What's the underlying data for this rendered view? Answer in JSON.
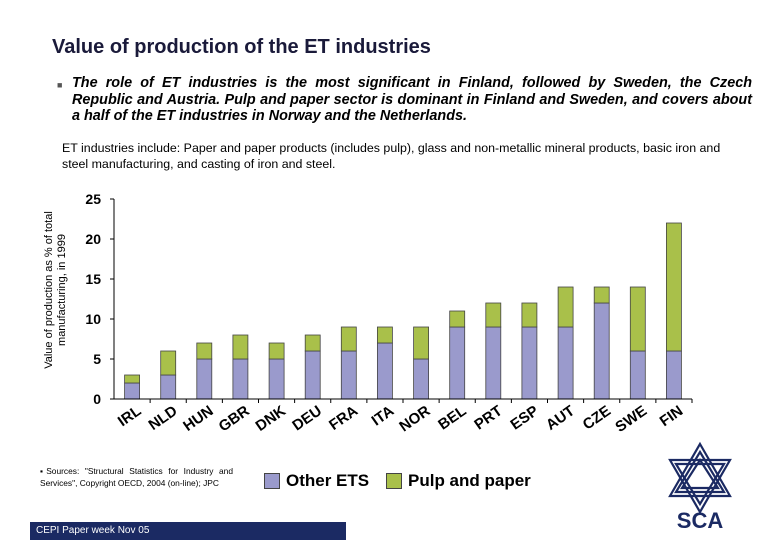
{
  "title": "Value of production of the ET industries",
  "bullet": {
    "icon": "square-bullet-icon",
    "text": "The role of ET industries is the most significant in Finland, followed by Sweden, the Czech Republic and Austria. Pulp and paper sector is dominant in Finland and Sweden, and covers about a half of the ET industries in Norway and the Netherlands."
  },
  "note": "ET industries include: Paper and paper products (includes pulp),  glass and non-metallic mineral products, basic iron and steel manufacturing, and casting of iron and steel.",
  "source_text": "▪Sources: \"Structural Statistics for Industry and Services\", Copyright OECD, 2004 (on-line); JPC",
  "footer_text": "CEPI Paper week Nov 05",
  "logo_text": "SCA",
  "colors": {
    "other_ets": "#9a9acc",
    "pulp_paper": "#a9c04a",
    "footer_bg": "#1b2a63",
    "logo_navy": "#1b2a63"
  },
  "chart_data": {
    "type": "bar",
    "stacked": true,
    "title": "",
    "xlabel": "",
    "ylabel": "Value of production as % of total manufacturing, in 1999",
    "ylim": [
      0,
      25
    ],
    "yticks": [
      0,
      5,
      10,
      15,
      20,
      25
    ],
    "grid": false,
    "legend_position": "bottom",
    "categories": [
      "IRL",
      "NLD",
      "HUN",
      "GBR",
      "DNK",
      "DEU",
      "FRA",
      "ITA",
      "NOR",
      "BEL",
      "PRT",
      "ESP",
      "AUT",
      "CZE",
      "SWE",
      "FIN"
    ],
    "series": [
      {
        "name": "Other ETS",
        "color": "#9a9acc",
        "values": [
          2,
          3,
          5,
          5,
          5,
          6,
          6,
          7,
          5,
          9,
          9,
          9,
          9,
          12,
          6,
          6
        ]
      },
      {
        "name": "Pulp and paper",
        "color": "#a9c04a",
        "values": [
          1,
          3,
          2,
          3,
          2,
          2,
          3,
          2,
          4,
          2,
          3,
          3,
          5,
          2,
          8,
          16
        ]
      }
    ]
  }
}
